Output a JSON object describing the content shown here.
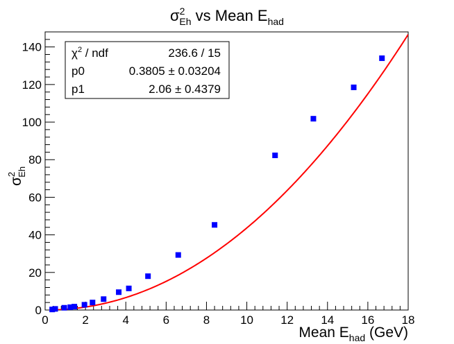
{
  "chart_data": {
    "type": "scatter",
    "title": {
      "main": "σ",
      "sup": "2",
      "sub": "Eh",
      "rest": " vs Mean E",
      "rest_sub": "had"
    },
    "xlabel": {
      "main": "Mean E",
      "sub": "had",
      "rest": " (GeV)"
    },
    "ylabel": {
      "main": "σ",
      "sup": "2",
      "sub": "Eh"
    },
    "xlim": [
      0,
      18
    ],
    "ylim": [
      0,
      148
    ],
    "x_ticks": [
      0,
      2,
      4,
      6,
      8,
      10,
      12,
      14,
      16,
      18
    ],
    "y_ticks": [
      0,
      20,
      40,
      60,
      80,
      100,
      120,
      140
    ],
    "x_tick_labels": [
      "0",
      "2",
      "4",
      "6",
      "8",
      "10",
      "12",
      "14",
      "16",
      "18"
    ],
    "y_tick_labels": [
      "0",
      "20",
      "40",
      "60",
      "80",
      "100",
      "120",
      "140"
    ],
    "series": [
      {
        "name": "data",
        "color": "#0000ff",
        "marker": "square",
        "x": [
          0.35,
          0.5,
          0.95,
          1.25,
          1.45,
          1.95,
          2.35,
          2.9,
          3.65,
          4.15,
          5.1,
          6.6,
          8.4,
          11.4,
          13.3,
          15.3,
          16.7
        ],
        "y": [
          0.3,
          0.6,
          1.2,
          1.5,
          1.8,
          2.8,
          4.0,
          5.8,
          9.5,
          11.5,
          18.0,
          29.3,
          45.3,
          82.3,
          101.8,
          118.5,
          134.0
        ]
      }
    ],
    "fit": {
      "name": "fit",
      "color": "#ff0000",
      "function": "p0 * x^p1",
      "p0": 0.3805,
      "p1": 2.06,
      "x_range": [
        0.3,
        18
      ]
    },
    "stats_box": {
      "rows": [
        {
          "label_main": "χ",
          "label_sup": "2",
          "label_rest": " / ndf",
          "value": "236.6 / 15"
        },
        {
          "label_main": "p0",
          "value": "0.3805 ± 0.03204"
        },
        {
          "label_main": "p1",
          "value": "2.06 ± 0.4379"
        }
      ]
    }
  }
}
